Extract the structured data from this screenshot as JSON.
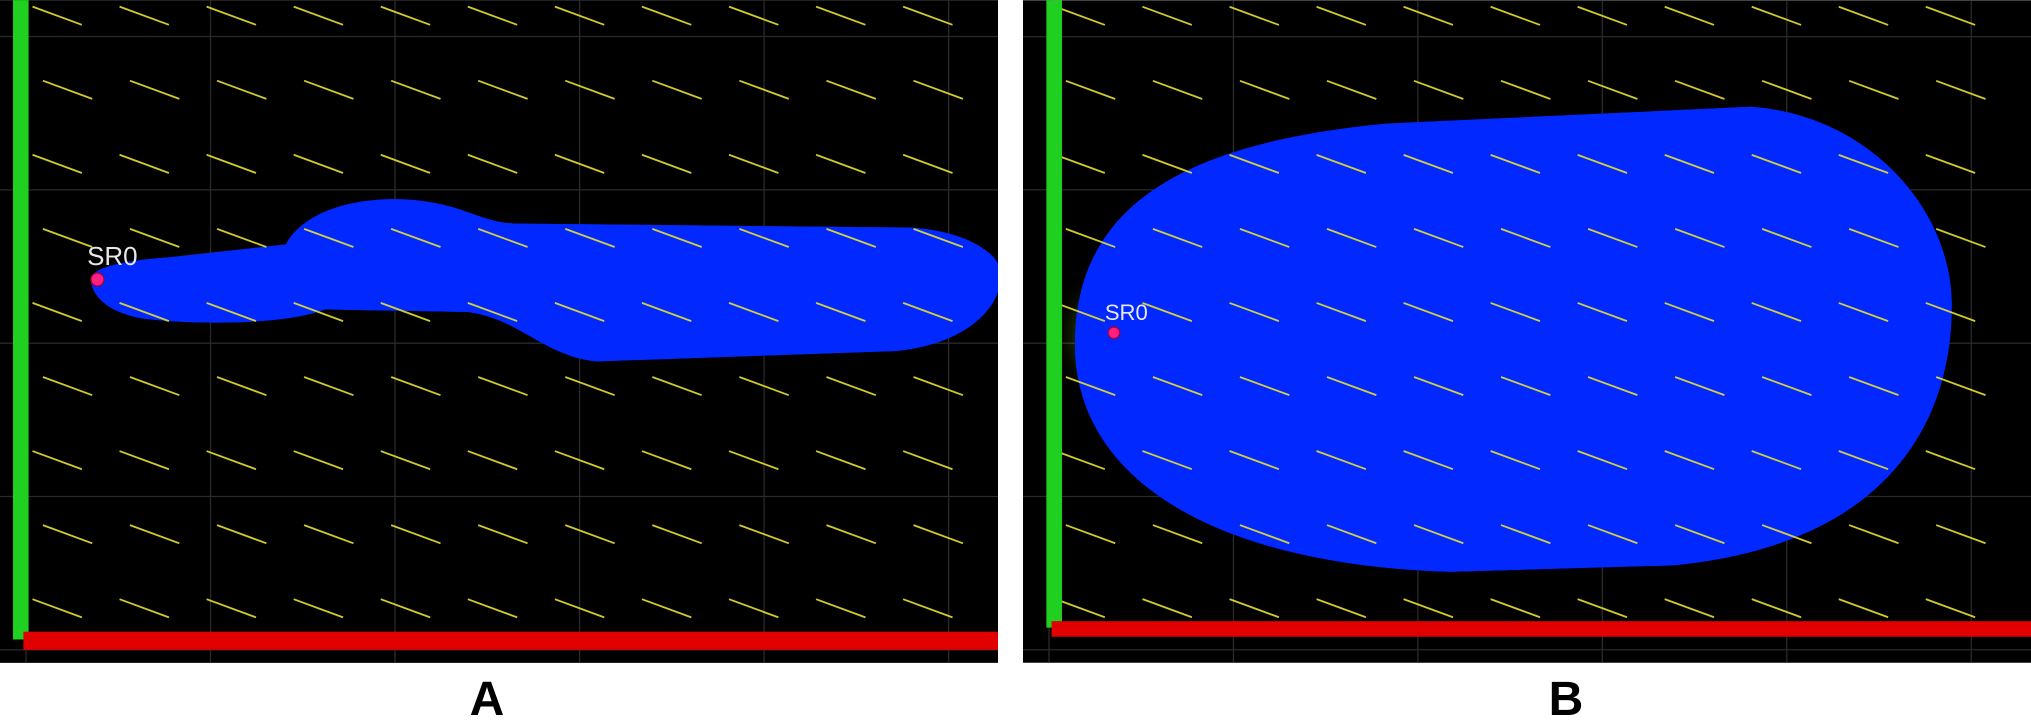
{
  "panels": [
    {
      "label": "A",
      "source": "SR0"
    },
    {
      "label": "B",
      "source": "SR0"
    }
  ]
}
